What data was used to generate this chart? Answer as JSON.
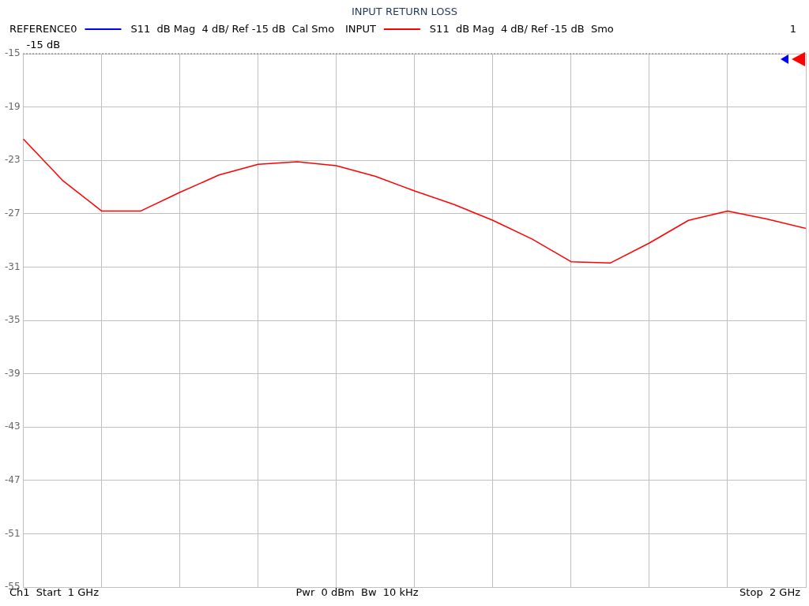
{
  "chart_data": {
    "type": "line",
    "title": "INPUT RETURN LOSS",
    "categories": [
      null,
      null,
      null,
      null,
      null,
      null,
      null,
      null,
      null,
      null,
      null,
      null,
      null,
      null,
      null,
      null,
      null,
      null,
      null,
      null,
      null
    ],
    "series": [
      {
        "name": "S11  dB Mag  4 dB/ Ref -15 dB  Cal Smo",
        "color": "#0000ff",
        "values": [
          null,
          null,
          null,
          null,
          null,
          null,
          null,
          null,
          null,
          null,
          null,
          null,
          null,
          null,
          null,
          null,
          null,
          null,
          null,
          null,
          null
        ]
      },
      {
        "name": "S11  dB Mag  4 dB/ Ref -15 dB  Smo",
        "color": "#ff0000",
        "values": [
          -21.4,
          -24.5,
          -26.8,
          -26.8,
          -25.4,
          -24.1,
          -23.3,
          -23.1,
          -23.4,
          -24.2,
          -25.3,
          -26.3,
          -27.5,
          -28.9,
          -30.6,
          -30.7,
          -29.2,
          -27.5,
          -26.8,
          -27.4,
          -28.1
        ]
      }
    ],
    "ylim": [
      -55,
      -15
    ],
    "yticks": [
      -55,
      -51,
      -47,
      -43,
      -39,
      -35,
      -31,
      -27,
      -23,
      -19,
      -15
    ],
    "tick_labels": "y",
    "grid": true,
    "legend": "top left",
    "marker": "none",
    "line_style": "solid",
    "ref_lines": [
      {
        "axis": "y",
        "value": -15,
        "label": "-15 dB",
        "color": "#000000",
        "line_style": "dotted"
      }
    ],
    "annotations": [
      "REFERENCE0",
      "INPUT",
      "1",
      "Ch1  Start  1 GHz",
      "Pwr  0 dBm  Bw  10 kHz",
      "Stop  2 GHz"
    ]
  }
}
